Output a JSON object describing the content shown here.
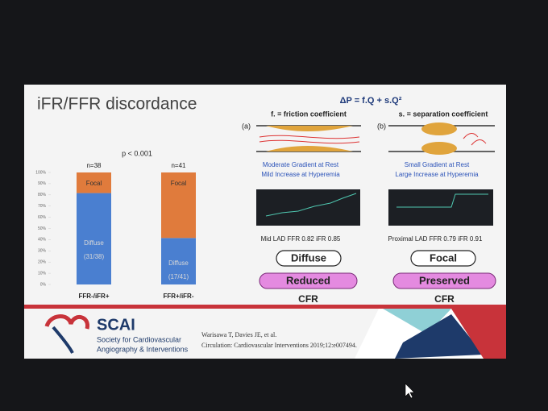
{
  "slide": {
    "title": "iFR/FFR discordance",
    "p_value": "p < 0.001",
    "chart": {
      "type": "bar",
      "stacked": true,
      "categories": [
        "FFR-/iFR+",
        "FFR+/iFR-"
      ],
      "n_labels": [
        "n=38",
        "n=41"
      ],
      "series": [
        {
          "name": "Diffuse",
          "color": "#4a7fd0",
          "values": [
            81.6,
            41.5
          ],
          "value_labels": [
            "(31/38)",
            "(17/41)"
          ]
        },
        {
          "name": "Focal",
          "color": "#e07b3c",
          "values": [
            18.4,
            58.5
          ]
        }
      ],
      "ylim": [
        0,
        100
      ],
      "yticks": [
        {
          "value": 0,
          "label": "0%"
        },
        {
          "value": 10,
          "label": "10%"
        },
        {
          "value": 20,
          "label": "20%"
        },
        {
          "value": 30,
          "label": "30%"
        },
        {
          "value": 40,
          "label": "40%"
        },
        {
          "value": 50,
          "label": "50%"
        },
        {
          "value": 60,
          "label": "60%"
        },
        {
          "value": 70,
          "label": "70%"
        },
        {
          "value": 80,
          "label": "80%"
        },
        {
          "value": 90,
          "label": "90%"
        },
        {
          "value": 100,
          "label": "100%"
        }
      ]
    },
    "formula": "ΔP = f.Q + s.Q²",
    "panels": [
      {
        "tag": "(a)",
        "heading": "f. = friction coefficient",
        "captions": [
          "Moderate Gradient at Rest",
          "Mild Increase at Hyperemia"
        ],
        "stats": "Mid LAD FFR 0.82 iFR 0.85",
        "pattern": "Diffuse",
        "cfr_state": "Reduced",
        "cfr": "CFR"
      },
      {
        "tag": "(b)",
        "heading": "s. = separation coefficient",
        "captions": [
          "Small Gradient at Rest",
          "Large Increase at Hyperemia"
        ],
        "stats": "Proximal LAD FFR 0.79 iFR 0.91",
        "pattern": "Focal",
        "cfr_state": "Preserved",
        "cfr": "CFR"
      }
    ],
    "footer": {
      "logo": "SCAI",
      "society": [
        "Society for Cardiovascular",
        "Angiography & Interventions"
      ],
      "citation": [
        "Warisawa T, Davies JE, et al.",
        "Circulation: Cardiovascular Interventions 2019;12:e007494."
      ]
    }
  }
}
